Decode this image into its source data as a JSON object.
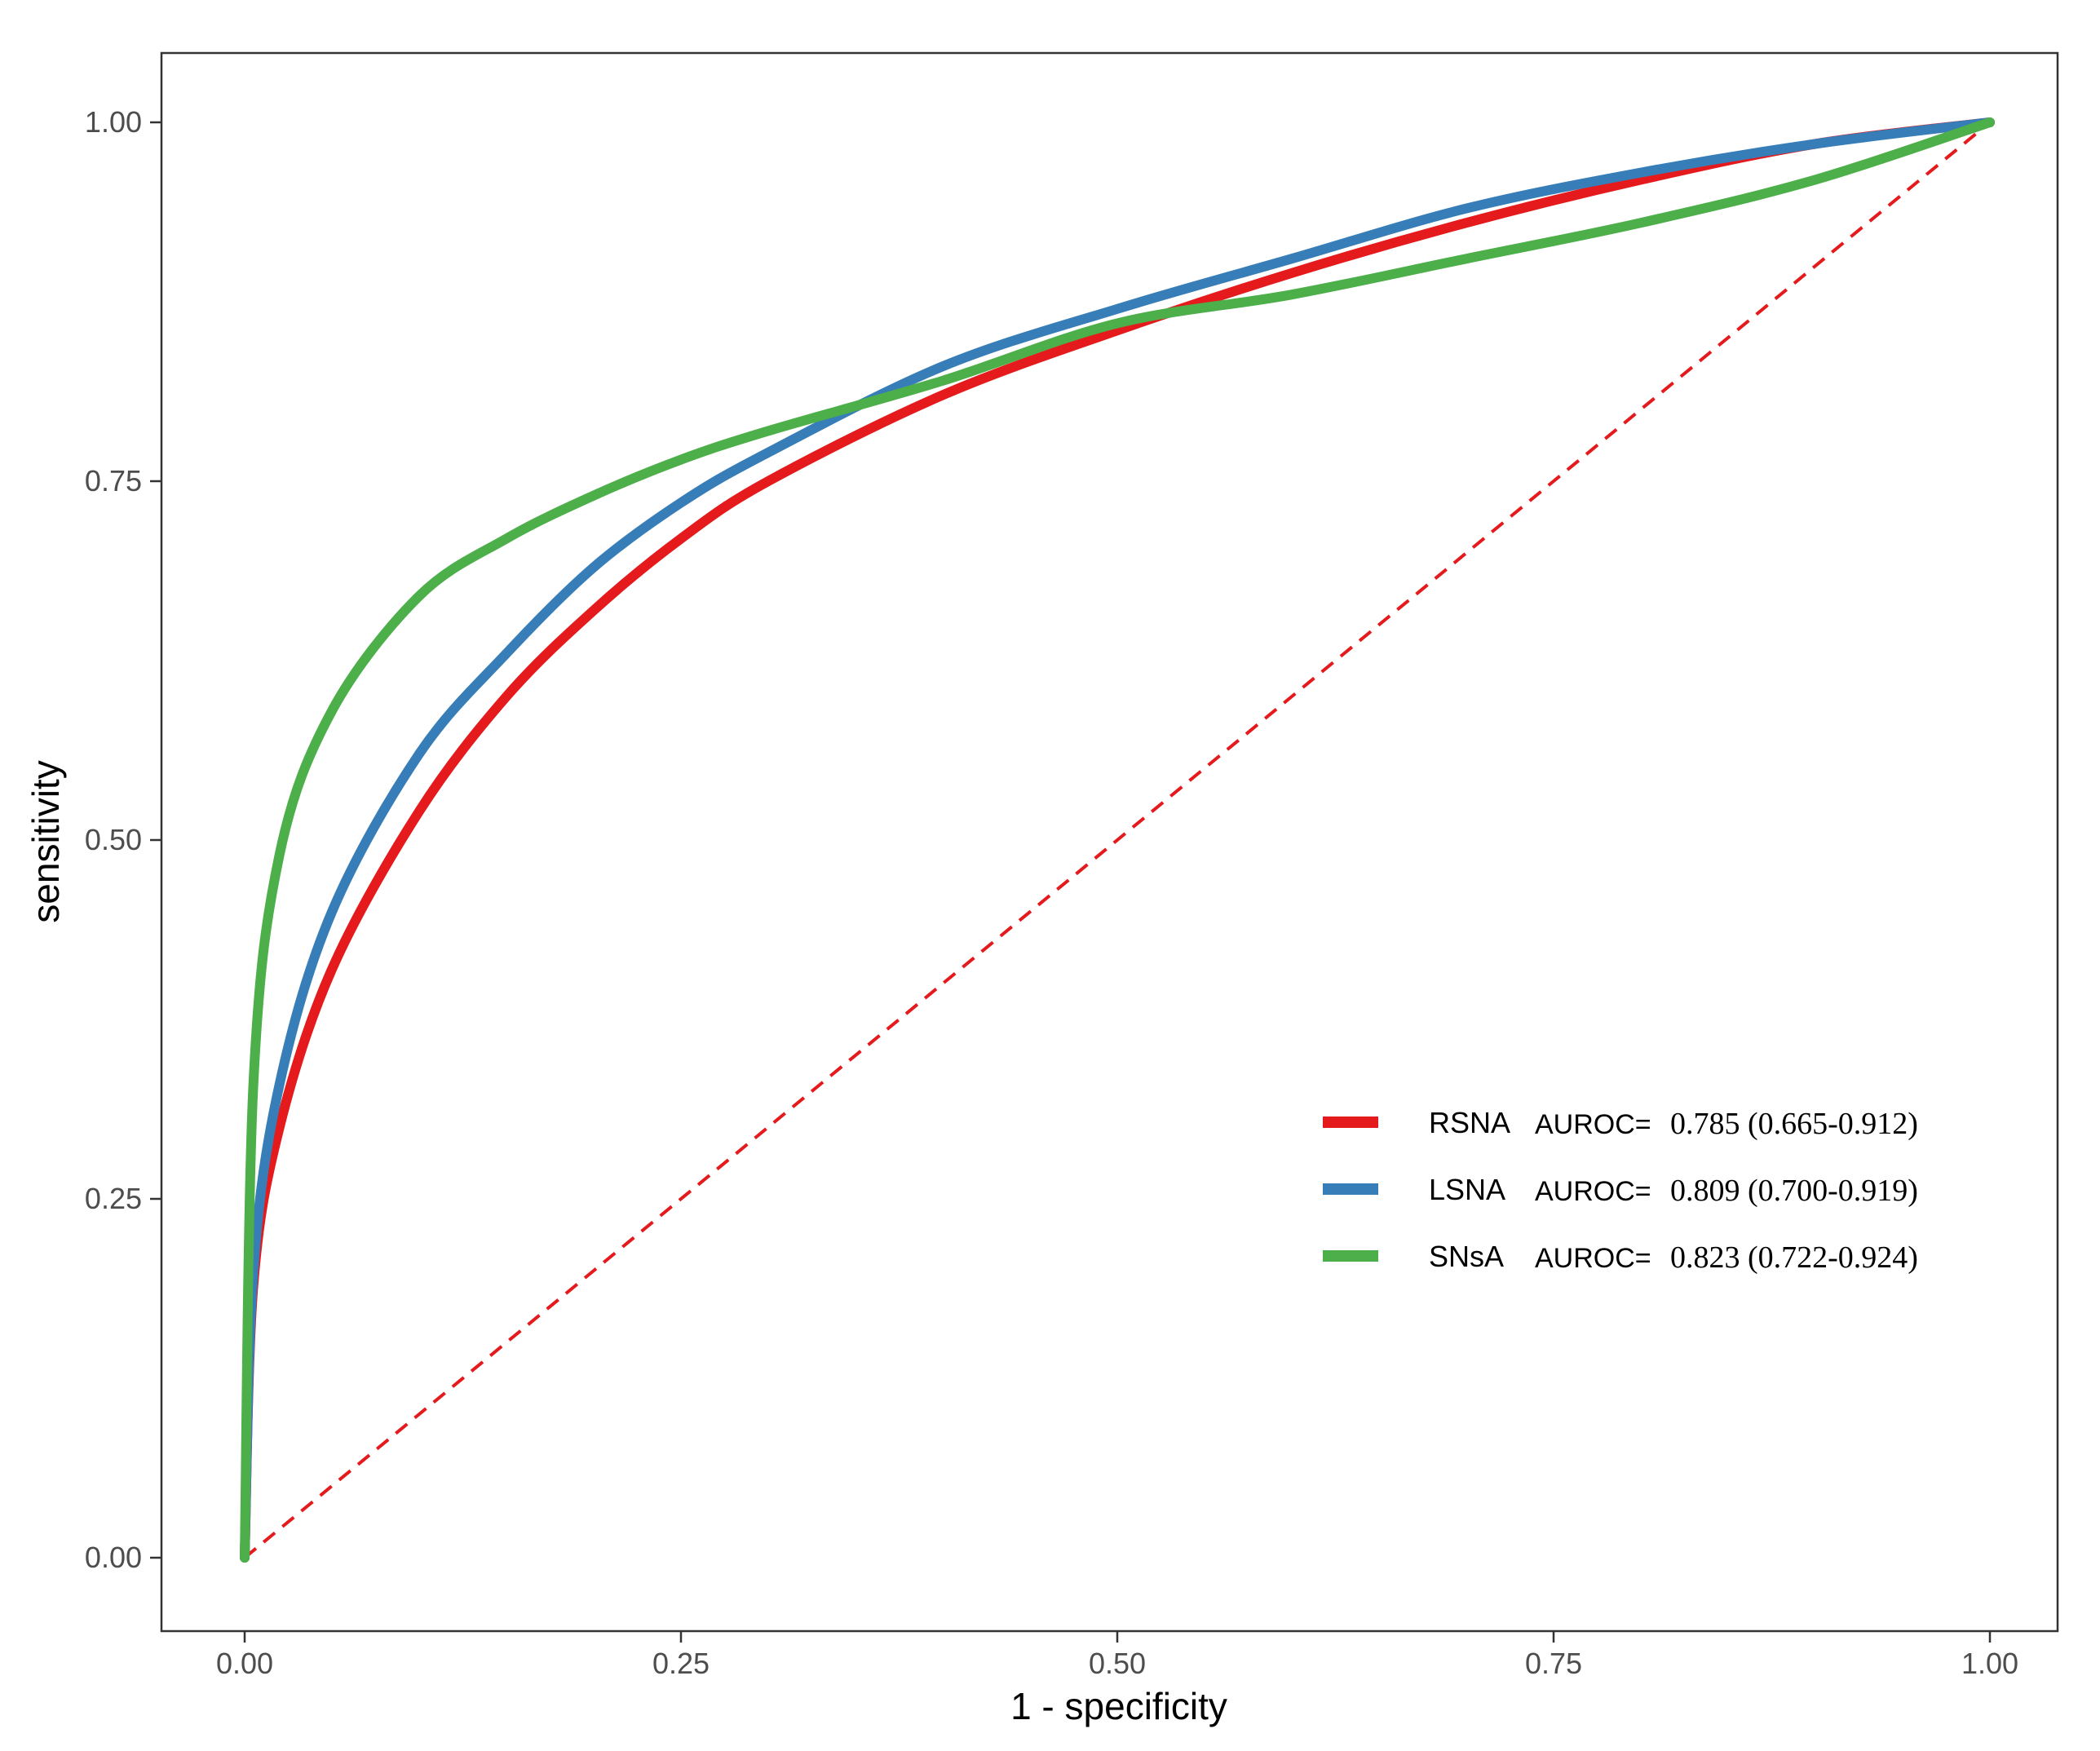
{
  "chart_data": {
    "type": "line",
    "title": "",
    "xlabel": "1 - specificity",
    "ylabel": "sensitivity",
    "xlim": [
      0,
      1
    ],
    "ylim": [
      0,
      1
    ],
    "x_ticks": [
      "0.00",
      "0.25",
      "0.50",
      "0.75",
      "1.00"
    ],
    "y_ticks": [
      "0.00",
      "0.25",
      "0.50",
      "0.75",
      "1.00"
    ],
    "grid": false,
    "legend_position": "bottom-right",
    "x": [
      0,
      0.005,
      0.02,
      0.05,
      0.1,
      0.15,
      0.2,
      0.25,
      0.3,
      0.4,
      0.5,
      0.6,
      0.7,
      0.8,
      0.9,
      1.0
    ],
    "series": [
      {
        "name": "RSNA",
        "metric_label": "AUROC=",
        "auroc": "0.785 (0.665-0.912)",
        "color": "#e41a1c",
        "values": [
          0,
          0.19,
          0.3,
          0.41,
          0.52,
          0.6,
          0.66,
          0.71,
          0.75,
          0.81,
          0.855,
          0.895,
          0.93,
          0.96,
          0.985,
          1.0
        ]
      },
      {
        "name": "LSNA",
        "metric_label": "AUROC=",
        "auroc": "0.809 (0.700-0.919)",
        "color": "#377eb8",
        "values": [
          0,
          0.2,
          0.33,
          0.45,
          0.56,
          0.63,
          0.69,
          0.735,
          0.77,
          0.83,
          0.87,
          0.905,
          0.94,
          0.965,
          0.985,
          1.0
        ]
      },
      {
        "name": "SNsA",
        "metric_label": "AUROC=",
        "auroc": "0.823 (0.722-0.924)",
        "color": "#4daf4a",
        "values": [
          0,
          0.33,
          0.49,
          0.59,
          0.67,
          0.71,
          0.74,
          0.765,
          0.785,
          0.82,
          0.86,
          0.88,
          0.905,
          0.93,
          0.96,
          1.0
        ]
      }
    ],
    "reference_line": {
      "type": "diagonal",
      "style": "dashed",
      "color": "#e41a1c",
      "x": [
        0,
        1
      ],
      "y": [
        0,
        1
      ]
    }
  }
}
